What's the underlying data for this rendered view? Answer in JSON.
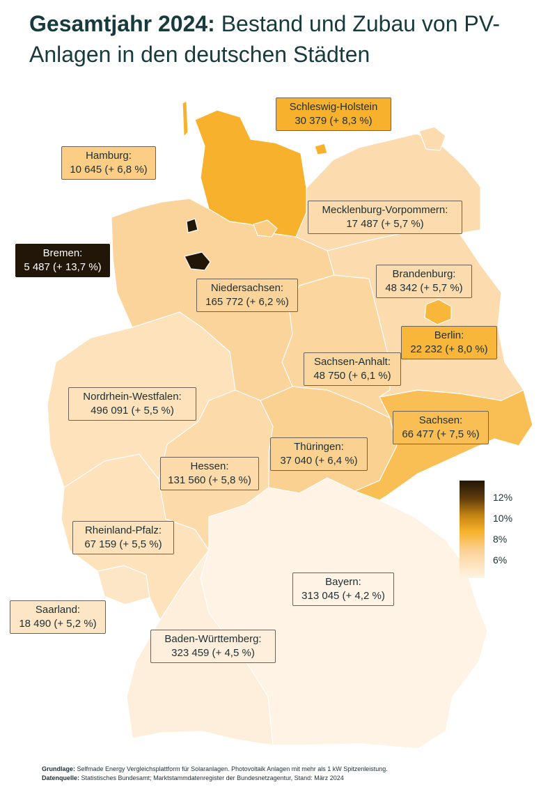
{
  "title": {
    "bold": "Gesamtjahr 2024:",
    "rest": " Bestand und Zubau von PV-Anlagen in den deutschen Städten"
  },
  "colors": {
    "lowest": "#fef3e4",
    "low": "#fbdcae",
    "mid": "#fbd296",
    "high": "#f7b02a",
    "highest": "#221608",
    "label_border": "#6b6156",
    "title": "#173a3d"
  },
  "states": [
    {
      "id": "schleswig-holstein",
      "name": "Schleswig-Holstein",
      "value": "30 379 (+ 8,3 %)",
      "fill": "#f8b12c"
    },
    {
      "id": "hamburg",
      "name": "Hamburg:",
      "value": "10 645 (+ 6,8 %)",
      "fill": "#fbcd85"
    },
    {
      "id": "mecklenburg-vorpommern",
      "name": "Mecklenburg-Vorpommern:",
      "value": "17 487 (+ 5,7 %)",
      "fill": "#fcdcaf"
    },
    {
      "id": "bremen",
      "name": "Bremen:",
      "value": "5 487 (+ 13,7 %)",
      "fill": "#221608"
    },
    {
      "id": "niedersachsen",
      "name": "Niedersachsen:",
      "value": "165 772 (+ 6,2 %)",
      "fill": "#fbd49b"
    },
    {
      "id": "brandenburg",
      "name": "Brandenburg:",
      "value": "48 342 (+ 5,7 %)",
      "fill": "#fcdcaf"
    },
    {
      "id": "berlin",
      "name": "Berlin:",
      "value": "22 232 (+ 8,0 %)",
      "fill": "#f8b63a"
    },
    {
      "id": "sachsen-anhalt",
      "name": "Sachsen-Anhalt:",
      "value": "48 750 (+ 6,1 %)",
      "fill": "#fbd69f"
    },
    {
      "id": "nordrhein-westfalen",
      "name": "Nordrhein-Westfalen:",
      "value": "496 091 (+ 5,5 %)",
      "fill": "#fde2bb"
    },
    {
      "id": "sachsen",
      "name": "Sachsen:",
      "value": "66 477 (+ 7,5 %)",
      "fill": "#f9bf54"
    },
    {
      "id": "thueringen",
      "name": "Thüringen:",
      "value": "37 040 (+ 6,4 %)",
      "fill": "#fbd192"
    },
    {
      "id": "hessen",
      "name": "Hessen:",
      "value": "131 560 (+ 5,8 %)",
      "fill": "#fcdaaa"
    },
    {
      "id": "rheinland-pfalz",
      "name": "Rheinland-Pfalz:",
      "value": "67 159 (+ 5,5 %)",
      "fill": "#fde2bb"
    },
    {
      "id": "saarland",
      "name": "Saarland:",
      "value": "18 490 (+ 5,2 %)",
      "fill": "#fde6c6"
    },
    {
      "id": "bayern",
      "name": "Bayern:",
      "value": "313 045 (+ 4,2 %)",
      "fill": "#fef3e4"
    },
    {
      "id": "baden-wuerttemberg",
      "name": "Baden-Württemberg:",
      "value": "323 459 (+ 4,5 %)",
      "fill": "#feefdc"
    }
  ],
  "legend": {
    "ticks": [
      "12%",
      "10%",
      "8%",
      "6%"
    ],
    "range": [
      4,
      13.5
    ]
  },
  "footer": {
    "line1_bold": "Grundlage:",
    "line1": " Selfmade Energy Vergleichsplattform für Solaranlagen. Photovoltaik Anlagen mit mehr als 1 kW Spitzenleistung.",
    "line2_bold": "Datenquelle:",
    "line2": " Statistisches Bundesamt; Marktstammdatenregister der Bundesnetzagentur, Stand: März 2024"
  }
}
